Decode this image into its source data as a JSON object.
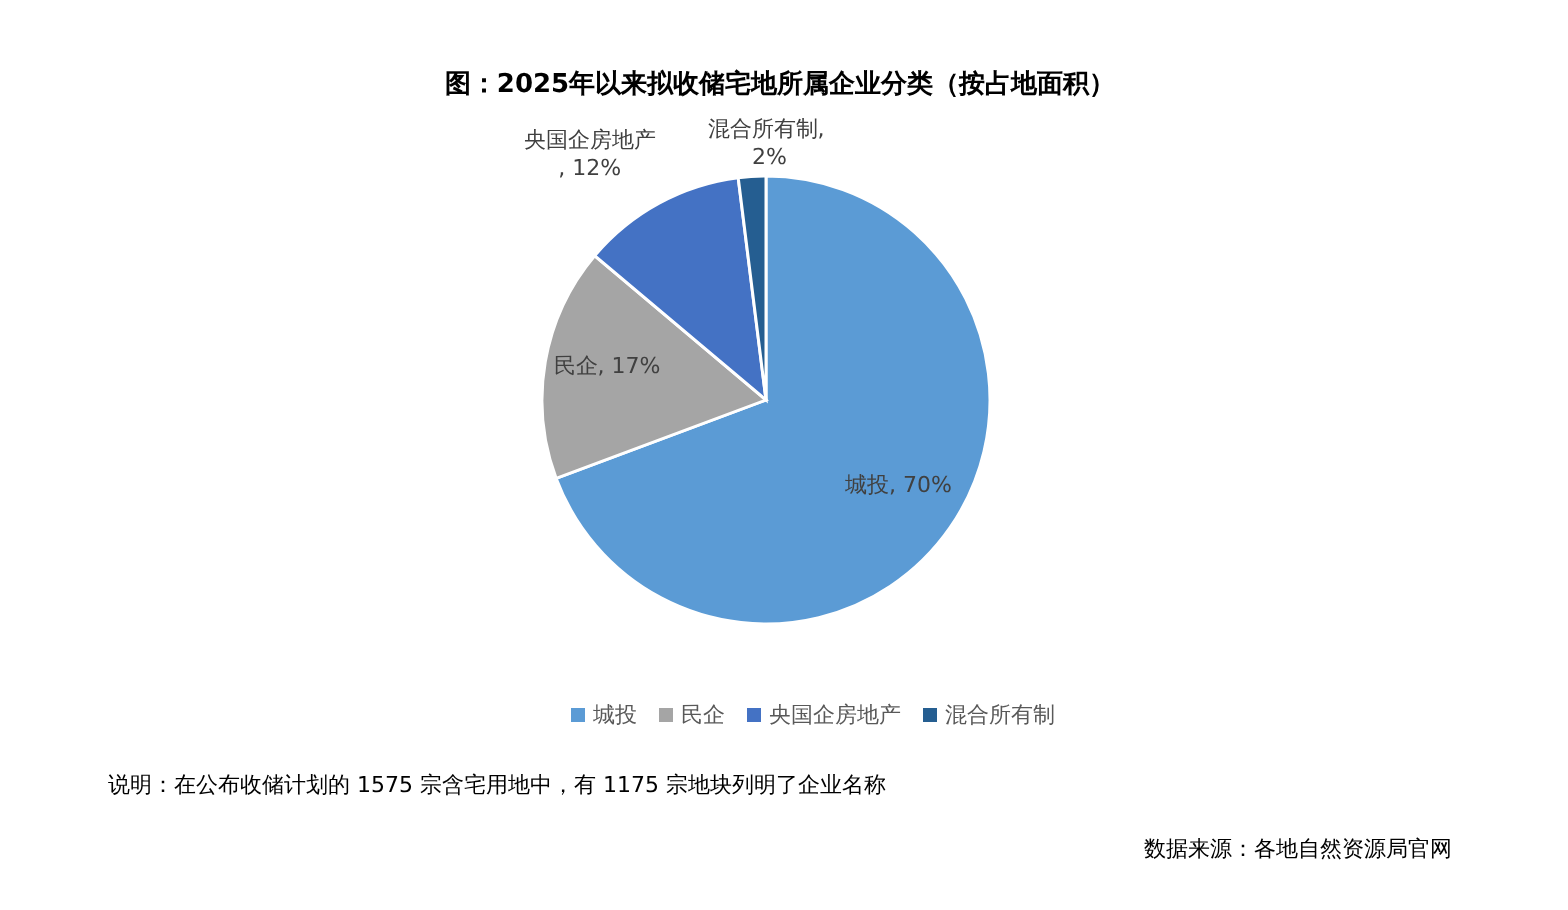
{
  "chart_data": {
    "type": "pie",
    "title": "图：2025年以来拟收储宅地所属企业分类（按占地面积）",
    "categories": [
      "城投",
      "民企",
      "央国企房地产",
      "混合所有制"
    ],
    "values": [
      70,
      17,
      12,
      2
    ],
    "colors": [
      "#5b9bd5",
      "#a5a5a5",
      "#4472c4",
      "#255e91"
    ],
    "value_labels": [
      "城投, 70%",
      "民企, 17%",
      "央国企房地产, 12%",
      "混合所有制, 2%"
    ],
    "legend": "bottom",
    "annotations": [
      "说明：在公布收储计划的 1575 宗含宅用地中，有 1175 宗地块列明了企业名称",
      "数据来源：各地自然资源局官网"
    ]
  }
}
